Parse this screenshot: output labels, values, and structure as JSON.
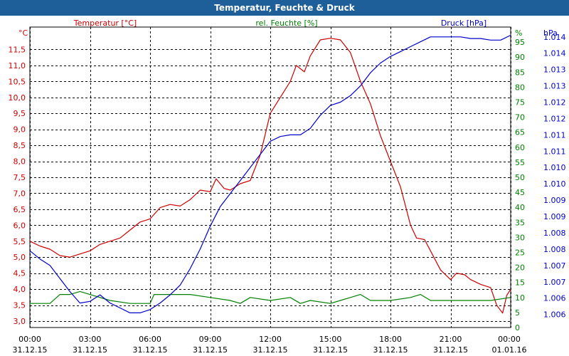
{
  "window": {
    "title": "Temperatur, Feuchte & Druck"
  },
  "colors": {
    "temperature": "#cc0000",
    "humidity": "#008000",
    "pressure": "#0000cc",
    "title_bg": "#1f5f99",
    "grid": "#000000"
  },
  "chart_data": {
    "type": "line",
    "title": "Temperatur, Feuchte & Druck",
    "grid": true,
    "x": {
      "range_hours": [
        0,
        24
      ],
      "ticks": [
        {
          "h": 0,
          "time": "00:00",
          "date": "31.12.15"
        },
        {
          "h": 3,
          "time": "03:00",
          "date": "31.12.15"
        },
        {
          "h": 6,
          "time": "06:00",
          "date": "31.12.15"
        },
        {
          "h": 9,
          "time": "09:00",
          "date": "31.12.15"
        },
        {
          "h": 12,
          "time": "12:00",
          "date": "31.12.15"
        },
        {
          "h": 15,
          "time": "15:00",
          "date": "31.12.15"
        },
        {
          "h": 18,
          "time": "18:00",
          "date": "31.12.15"
        },
        {
          "h": 21,
          "time": "21:00",
          "date": "31.12.15"
        },
        {
          "h": 24,
          "time": "00:00",
          "date": "01.01.16"
        }
      ]
    },
    "axes": {
      "temperature": {
        "label": "Temperatur [°C]",
        "unit": "°C",
        "range": [
          2.8,
          12.2
        ],
        "ticks": [
          "3,0",
          "3,5",
          "4,0",
          "4,5",
          "5,0",
          "5,5",
          "6,0",
          "6,5",
          "7,0",
          "7,5",
          "8,0",
          "8,5",
          "9,0",
          "9,5",
          "10,0",
          "10,5",
          "11,0",
          "11,5"
        ],
        "tick_values": [
          3.0,
          3.5,
          4.0,
          4.5,
          5.0,
          5.5,
          6.0,
          6.5,
          7.0,
          7.5,
          8.0,
          8.5,
          9.0,
          9.5,
          10.0,
          10.5,
          11.0,
          11.5
        ]
      },
      "humidity": {
        "label": "rel. Feuchte [%]",
        "unit": "%",
        "range": [
          0,
          100
        ],
        "ticks": [
          "0",
          "5",
          "10",
          "15",
          "20",
          "25",
          "30",
          "35",
          "40",
          "45",
          "50",
          "55",
          "60",
          "65",
          "70",
          "75",
          "80",
          "85",
          "90",
          "95"
        ],
        "tick_values": [
          0,
          5,
          10,
          15,
          20,
          25,
          30,
          35,
          40,
          45,
          50,
          55,
          60,
          65,
          70,
          75,
          80,
          85,
          90,
          95
        ]
      },
      "pressure": {
        "label": "Druck [hPa]",
        "unit": "hPa",
        "range": [
          1005.5,
          1014.7
        ],
        "ticks": [
          "1.006",
          "1.006",
          "1.007",
          "1.007",
          "1.008",
          "1.008",
          "1.009",
          "1.009",
          "1.010",
          "1.010",
          "1.011",
          "1.011",
          "1.012",
          "1.012",
          "1.013",
          "1.013",
          "1.014",
          "1.014"
        ],
        "tick_values": [
          1005.9,
          1006.4,
          1006.9,
          1007.4,
          1007.9,
          1008.4,
          1008.9,
          1009.4,
          1009.9,
          1010.4,
          1010.9,
          1011.4,
          1011.9,
          1012.4,
          1012.9,
          1013.4,
          1013.9,
          1014.4
        ]
      }
    },
    "series": [
      {
        "name": "Temperatur [°C]",
        "axis": "temperature",
        "points": [
          [
            0,
            5.5
          ],
          [
            0.5,
            5.35
          ],
          [
            1,
            5.25
          ],
          [
            1.5,
            5.05
          ],
          [
            2,
            5.0
          ],
          [
            2.5,
            5.1
          ],
          [
            3,
            5.2
          ],
          [
            3.5,
            5.4
          ],
          [
            4,
            5.5
          ],
          [
            4.5,
            5.6
          ],
          [
            5,
            5.85
          ],
          [
            5.5,
            6.1
          ],
          [
            6,
            6.2
          ],
          [
            6.5,
            6.55
          ],
          [
            7,
            6.65
          ],
          [
            7.5,
            6.6
          ],
          [
            8,
            6.8
          ],
          [
            8.5,
            7.1
          ],
          [
            9,
            7.05
          ],
          [
            9.3,
            7.45
          ],
          [
            9.7,
            7.15
          ],
          [
            10,
            7.1
          ],
          [
            10.5,
            7.3
          ],
          [
            11,
            7.4
          ],
          [
            11.5,
            8.2
          ],
          [
            12,
            9.5
          ],
          [
            12.5,
            10.0
          ],
          [
            13,
            10.5
          ],
          [
            13.3,
            11.0
          ],
          [
            13.7,
            10.8
          ],
          [
            14,
            11.3
          ],
          [
            14.5,
            11.8
          ],
          [
            15,
            11.85
          ],
          [
            15.5,
            11.8
          ],
          [
            16,
            11.4
          ],
          [
            16.5,
            10.5
          ],
          [
            17,
            9.8
          ],
          [
            17.5,
            8.8
          ],
          [
            18,
            8.0
          ],
          [
            18.5,
            7.2
          ],
          [
            19,
            6.0
          ],
          [
            19.3,
            5.6
          ],
          [
            19.7,
            5.55
          ],
          [
            20,
            5.2
          ],
          [
            20.5,
            4.6
          ],
          [
            21,
            4.3
          ],
          [
            21.3,
            4.5
          ],
          [
            21.7,
            4.45
          ],
          [
            22,
            4.3
          ],
          [
            22.5,
            4.15
          ],
          [
            23,
            4.05
          ],
          [
            23.3,
            3.5
          ],
          [
            23.6,
            3.25
          ],
          [
            23.8,
            3.8
          ],
          [
            24,
            4.0
          ]
        ]
      },
      {
        "name": "rel. Feuchte [%]",
        "axis": "humidity",
        "points": [
          [
            0,
            8
          ],
          [
            1,
            8
          ],
          [
            1.5,
            11
          ],
          [
            2,
            11
          ],
          [
            2.5,
            12
          ],
          [
            3,
            11
          ],
          [
            4,
            9
          ],
          [
            5,
            8
          ],
          [
            6,
            8
          ],
          [
            6.2,
            11
          ],
          [
            7,
            11
          ],
          [
            8,
            11
          ],
          [
            9,
            10
          ],
          [
            10,
            9
          ],
          [
            10.5,
            8
          ],
          [
            11,
            10
          ],
          [
            12,
            9
          ],
          [
            13,
            10
          ],
          [
            13.5,
            8
          ],
          [
            14,
            9
          ],
          [
            15,
            8
          ],
          [
            15.5,
            9
          ],
          [
            16,
            10
          ],
          [
            16.5,
            11
          ],
          [
            17,
            9
          ],
          [
            18,
            9
          ],
          [
            19,
            10
          ],
          [
            19.5,
            11
          ],
          [
            20,
            9
          ],
          [
            21,
            9
          ],
          [
            22,
            9
          ],
          [
            23,
            9
          ],
          [
            24,
            10
          ]
        ]
      },
      {
        "name": "Druck [hPa]",
        "axis": "pressure",
        "points": [
          [
            0,
            1007.85
          ],
          [
            0.5,
            1007.6
          ],
          [
            1,
            1007.4
          ],
          [
            1.5,
            1007.0
          ],
          [
            2,
            1006.6
          ],
          [
            2.5,
            1006.25
          ],
          [
            3,
            1006.3
          ],
          [
            3.5,
            1006.5
          ],
          [
            4,
            1006.25
          ],
          [
            4.5,
            1006.1
          ],
          [
            5,
            1005.95
          ],
          [
            5.5,
            1005.95
          ],
          [
            6,
            1006.05
          ],
          [
            6.5,
            1006.25
          ],
          [
            7,
            1006.5
          ],
          [
            7.5,
            1006.8
          ],
          [
            8,
            1007.3
          ],
          [
            8.5,
            1007.9
          ],
          [
            9,
            1008.6
          ],
          [
            9.5,
            1009.2
          ],
          [
            10,
            1009.6
          ],
          [
            10.5,
            1010.0
          ],
          [
            11,
            1010.4
          ],
          [
            11.5,
            1010.8
          ],
          [
            12,
            1011.2
          ],
          [
            12.5,
            1011.35
          ],
          [
            13,
            1011.4
          ],
          [
            13.5,
            1011.4
          ],
          [
            14,
            1011.6
          ],
          [
            14.5,
            1012.0
          ],
          [
            15,
            1012.3
          ],
          [
            15.5,
            1012.4
          ],
          [
            16,
            1012.6
          ],
          [
            16.5,
            1012.9
          ],
          [
            17,
            1013.3
          ],
          [
            17.5,
            1013.6
          ],
          [
            18,
            1013.8
          ],
          [
            18.5,
            1013.95
          ],
          [
            19,
            1014.1
          ],
          [
            19.5,
            1014.25
          ],
          [
            20,
            1014.4
          ],
          [
            21,
            1014.4
          ],
          [
            21.5,
            1014.4
          ],
          [
            22,
            1014.35
          ],
          [
            22.5,
            1014.35
          ],
          [
            23,
            1014.3
          ],
          [
            23.5,
            1014.3
          ],
          [
            24,
            1014.45
          ]
        ]
      }
    ]
  }
}
